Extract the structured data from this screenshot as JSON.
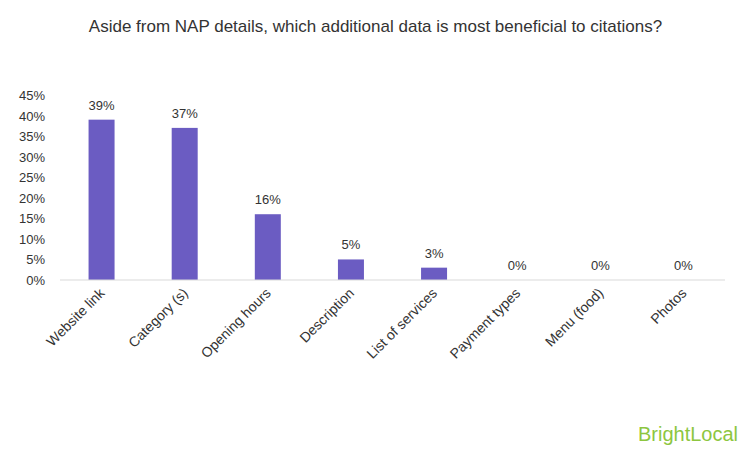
{
  "chart_data": {
    "type": "bar",
    "title": "Aside from NAP details, which additional data is most beneficial to citations?",
    "categories": [
      "Website link",
      "Category (s)",
      "Opening hours",
      "Description",
      "List of services",
      "Payment types",
      "Menu (food)",
      "Photos"
    ],
    "values": [
      39,
      37,
      16,
      5,
      3,
      0,
      0,
      0
    ],
    "value_labels": [
      "39%",
      "37%",
      "16%",
      "5%",
      "3%",
      "0%",
      "0%",
      "0%"
    ],
    "color": "#6b5cc2",
    "ylim": [
      0,
      45
    ],
    "yticks": [
      {
        "value": 0,
        "label": "0%"
      },
      {
        "value": 5,
        "label": "5%"
      },
      {
        "value": 10,
        "label": "10%"
      },
      {
        "value": 15,
        "label": "15%"
      },
      {
        "value": 20,
        "label": "20%"
      },
      {
        "value": 25,
        "label": "25%"
      },
      {
        "value": 30,
        "label": "30%"
      },
      {
        "value": 35,
        "label": "35%"
      },
      {
        "value": 40,
        "label": "40%"
      },
      {
        "value": 45,
        "label": "45%"
      }
    ],
    "grid": false,
    "data_labels": true,
    "annotations": [
      "BrightLocal"
    ]
  }
}
